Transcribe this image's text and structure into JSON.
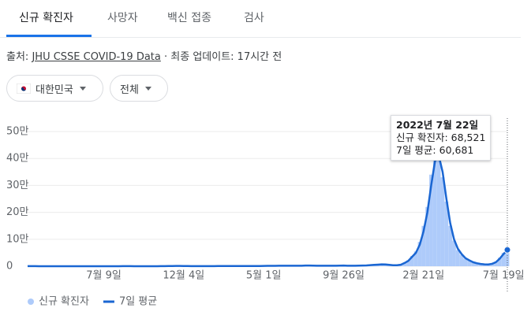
{
  "tabs": [
    "신규 확진자",
    "사망자",
    "백신 접종",
    "검사"
  ],
  "source": {
    "prefix": "출처:",
    "link": "JHU CSSE COVID-19 Data",
    "suffix": "· 최종 업데이트: 17시간 전"
  },
  "filters": [
    "대한민국",
    "전체"
  ],
  "chart_data": {
    "type": "combo",
    "categories": [
      null,
      null,
      null,
      null,
      null,
      null,
      null,
      null,
      null,
      null,
      null,
      null,
      null,
      null,
      null,
      null,
      null,
      null,
      null,
      null,
      "7월 9일",
      null,
      null,
      null,
      null,
      null,
      null,
      null,
      null,
      null,
      null,
      null,
      null,
      null,
      null,
      null,
      null,
      null,
      null,
      null,
      null,
      "12월 4일",
      null,
      null,
      null,
      null,
      null,
      null,
      null,
      null,
      null,
      null,
      null,
      null,
      null,
      null,
      null,
      null,
      null,
      null,
      null,
      null,
      "5월 1일",
      null,
      null,
      null,
      null,
      null,
      null,
      null,
      null,
      null,
      null,
      null,
      null,
      null,
      null,
      null,
      null,
      null,
      null,
      null,
      null,
      "9월 26일",
      null,
      null,
      null,
      null,
      null,
      null,
      null,
      null,
      null,
      null,
      null,
      null,
      null,
      null,
      null,
      null,
      null,
      null,
      null,
      null,
      "2월 21일",
      null,
      null,
      null,
      null,
      null,
      null,
      null,
      null,
      null,
      null,
      null,
      null,
      null,
      null,
      null,
      null,
      null,
      null,
      null,
      null,
      "7월 19일",
      null
    ],
    "series": [
      {
        "name": "신규 확진자",
        "type": "bar",
        "color": "#aecbfa",
        "values": [
          400,
          600,
          300,
          100,
          110,
          70,
          50,
          30,
          20,
          10,
          20,
          25,
          30,
          45,
          55,
          35,
          50,
          55,
          35,
          40,
          45,
          50,
          35,
          30,
          50,
          300,
          320,
          180,
          110,
          100,
          75,
          80,
          90,
          110,
          170,
          280,
          400,
          600,
          900,
          1050,
          1100,
          850,
          650,
          520,
          380,
          330,
          420,
          470,
          380,
          480,
          580,
          620,
          690,
          720,
          580,
          520,
          640,
          670,
          730,
          500,
          580,
          700,
          1100,
          1350,
          1550,
          1650,
          1750,
          1900,
          1750,
          1650,
          1750,
          1850,
          2000,
          2600,
          2300,
          2000,
          1750,
          1650,
          1900,
          2100,
          2050,
          1700,
          2300,
          2600,
          1900,
          1700,
          2100,
          2400,
          2600,
          3200,
          4200,
          5300,
          6200,
          7400,
          6200,
          4800,
          3600,
          3700,
          6000,
          13000,
          22000,
          38000,
          55000,
          90000,
          150000,
          220000,
          340000,
          420000,
          430000,
          330000,
          240000,
          150000,
          95000,
          60000,
          42000,
          28000,
          20000,
          14000,
          10000,
          8000,
          6800,
          6300,
          10000,
          17000,
          32000,
          50000,
          68521
        ]
      },
      {
        "name": "7일 평균",
        "type": "line",
        "color": "#1a66d2",
        "values": [
          300,
          500,
          350,
          120,
          100,
          80,
          60,
          30,
          20,
          10,
          15,
          20,
          30,
          40,
          50,
          40,
          45,
          50,
          40,
          35,
          40,
          45,
          40,
          30,
          40,
          250,
          300,
          200,
          120,
          90,
          80,
          70,
          80,
          100,
          150,
          250,
          350,
          550,
          800,
          1000,
          1050,
          900,
          700,
          500,
          400,
          350,
          400,
          450,
          400,
          450,
          550,
          600,
          650,
          700,
          600,
          550,
          600,
          650,
          700,
          550,
          550,
          650,
          1000,
          1300,
          1500,
          1600,
          1700,
          1800,
          1800,
          1700,
          1700,
          1800,
          1900,
          2500,
          2400,
          2100,
          1800,
          1700,
          1800,
          2000,
          2000,
          1800,
          2200,
          2500,
          2000,
          1800,
          2000,
          2300,
          2500,
          3000,
          4000,
          5000,
          6000,
          7000,
          6500,
          5000,
          3800,
          3500,
          5500,
          12000,
          20000,
          35000,
          50000,
          80000,
          130000,
          200000,
          300000,
          390000,
          410000,
          350000,
          250000,
          160000,
          100000,
          65000,
          45000,
          30000,
          22000,
          15000,
          11000,
          8500,
          7000,
          6500,
          9000,
          15000,
          28000,
          45000,
          60681
        ]
      }
    ],
    "ylim": [
      0,
      500000
    ],
    "yticks": [
      {
        "value": 0,
        "label": "0"
      },
      {
        "value": 100000,
        "label": "10만"
      },
      {
        "value": 200000,
        "label": "20만"
      },
      {
        "value": 300000,
        "label": "30만"
      },
      {
        "value": 400000,
        "label": "40만"
      },
      {
        "value": 500000,
        "label": "50만"
      }
    ],
    "grid": true,
    "tooltip": {
      "date": "2022년 7월 22일",
      "rows": [
        "신규 확진자: 68,521",
        "7일 평균: 60,681"
      ]
    }
  }
}
